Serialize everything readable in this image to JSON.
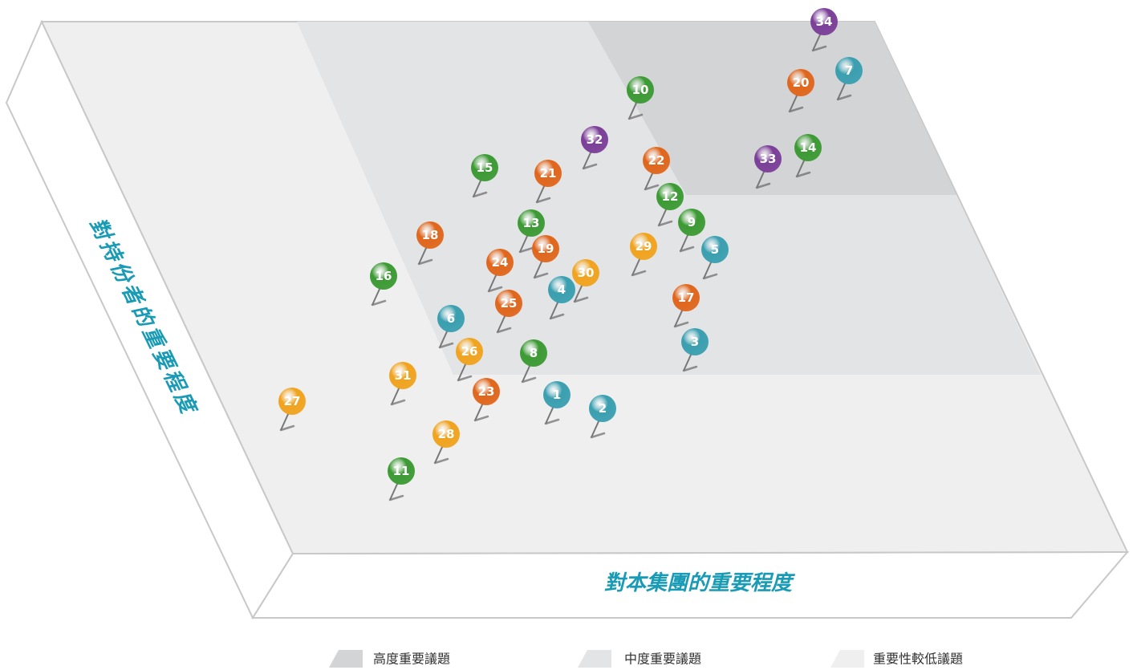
{
  "chart_data": {
    "type": "materiality-matrix",
    "x_label": "對本集團的重要程度",
    "y_label": "對持份者的重要程度",
    "legend": [
      {
        "name": "高度重要議題",
        "color": "#d3d4d6"
      },
      {
        "name": "中度重要議題",
        "color": "#e3e4e6"
      },
      {
        "name": "重要性較低議題",
        "color": "#efeff0"
      }
    ],
    "pins": [
      {
        "label": "34",
        "color": "#7b3f98"
      },
      {
        "label": "7",
        "color": "#3a9fb0"
      },
      {
        "label": "20",
        "color": "#e0661c"
      },
      {
        "label": "10",
        "color": "#3c9a34"
      },
      {
        "label": "14",
        "color": "#3c9a34"
      },
      {
        "label": "33",
        "color": "#7b3f98"
      },
      {
        "label": "32",
        "color": "#7b3f98"
      },
      {
        "label": "22",
        "color": "#e0661c"
      },
      {
        "label": "15",
        "color": "#3c9a34"
      },
      {
        "label": "21",
        "color": "#e0661c"
      },
      {
        "label": "12",
        "color": "#3c9a34"
      },
      {
        "label": "13",
        "color": "#3c9a34"
      },
      {
        "label": "9",
        "color": "#3c9a34"
      },
      {
        "label": "18",
        "color": "#e0661c"
      },
      {
        "label": "19",
        "color": "#e0661c"
      },
      {
        "label": "29",
        "color": "#f0a31e"
      },
      {
        "label": "5",
        "color": "#3a9fb0"
      },
      {
        "label": "24",
        "color": "#e0661c"
      },
      {
        "label": "30",
        "color": "#f0a31e"
      },
      {
        "label": "16",
        "color": "#3c9a34"
      },
      {
        "label": "4",
        "color": "#3a9fb0"
      },
      {
        "label": "17",
        "color": "#e0661c"
      },
      {
        "label": "25",
        "color": "#e0661c"
      },
      {
        "label": "6",
        "color": "#3a9fb0"
      },
      {
        "label": "3",
        "color": "#3a9fb0"
      },
      {
        "label": "26",
        "color": "#f0a31e"
      },
      {
        "label": "8",
        "color": "#3c9a34"
      },
      {
        "label": "31",
        "color": "#f0a31e"
      },
      {
        "label": "23",
        "color": "#e0661c"
      },
      {
        "label": "1",
        "color": "#3a9fb0"
      },
      {
        "label": "27",
        "color": "#f0a31e"
      },
      {
        "label": "2",
        "color": "#3a9fb0"
      },
      {
        "label": "28",
        "color": "#f0a31e"
      },
      {
        "label": "11",
        "color": "#3c9a34"
      }
    ]
  }
}
